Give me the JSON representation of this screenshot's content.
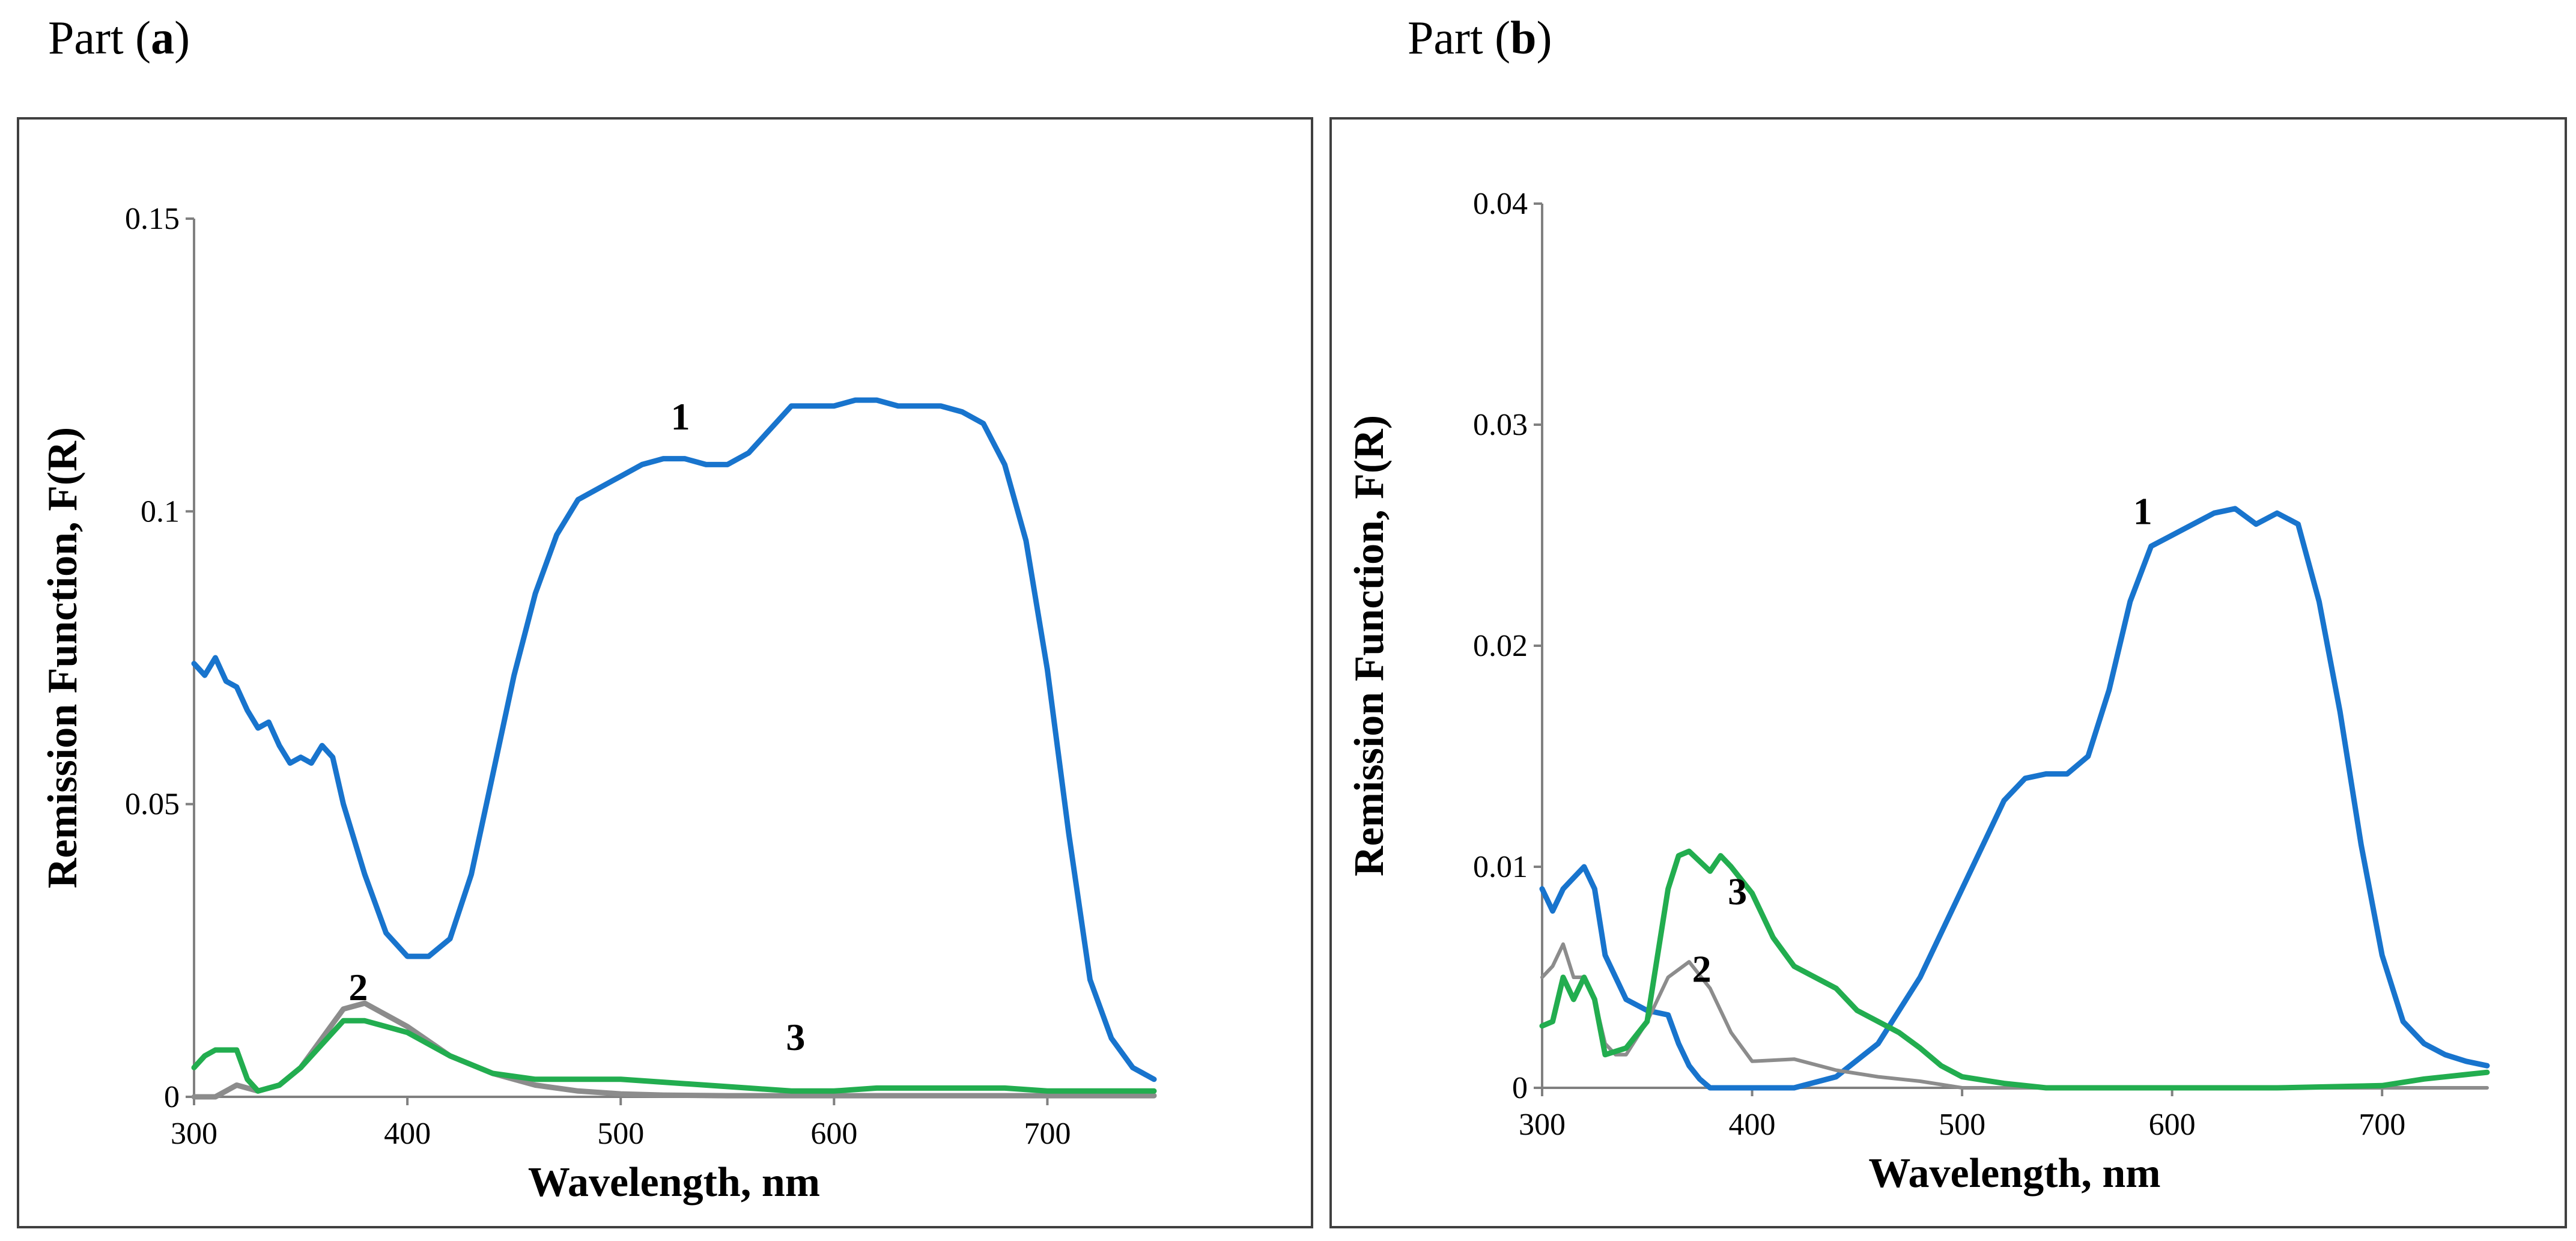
{
  "chart_data": [
    {
      "panel_label_prefix": "Part (",
      "panel_label_letter": "a",
      "panel_label_suffix": ")",
      "type": "line",
      "xlabel": "Wavelength,  nm",
      "ylabel": "Remission Function, F(R)",
      "xlim": [
        300,
        750
      ],
      "ylim": [
        0,
        0.15
      ],
      "xticks": [
        300,
        400,
        500,
        600,
        700
      ],
      "yticks": [
        0,
        0.05,
        0.1,
        0.15
      ],
      "ytick_labels": [
        "0",
        "0.05",
        "0.1",
        "0.15"
      ],
      "series": [
        {
          "name": "1",
          "color": "#1874CD",
          "x": [
            300,
            305,
            310,
            315,
            320,
            325,
            330,
            335,
            340,
            345,
            350,
            355,
            360,
            365,
            370,
            380,
            390,
            400,
            410,
            420,
            430,
            440,
            450,
            460,
            470,
            480,
            490,
            500,
            510,
            520,
            530,
            540,
            550,
            560,
            570,
            580,
            590,
            600,
            610,
            620,
            630,
            640,
            650,
            660,
            670,
            680,
            690,
            700,
            710,
            720,
            730,
            740,
            750
          ],
          "y": [
            0.074,
            0.072,
            0.075,
            0.071,
            0.07,
            0.066,
            0.063,
            0.064,
            0.06,
            0.057,
            0.058,
            0.057,
            0.06,
            0.058,
            0.05,
            0.038,
            0.028,
            0.024,
            0.024,
            0.027,
            0.038,
            0.055,
            0.072,
            0.086,
            0.096,
            0.102,
            0.104,
            0.106,
            0.108,
            0.109,
            0.109,
            0.108,
            0.108,
            0.11,
            0.114,
            0.118,
            0.118,
            0.118,
            0.119,
            0.119,
            0.118,
            0.118,
            0.118,
            0.117,
            0.115,
            0.108,
            0.095,
            0.073,
            0.045,
            0.02,
            0.01,
            0.005,
            0.003
          ]
        },
        {
          "name": "2",
          "color": "#8C8C8C",
          "x": [
            300,
            310,
            320,
            330,
            340,
            350,
            360,
            370,
            380,
            390,
            400,
            420,
            440,
            460,
            480,
            500,
            520,
            550,
            600,
            650,
            700,
            750
          ],
          "y": [
            0.0,
            0.0,
            0.002,
            0.001,
            0.002,
            0.005,
            0.01,
            0.015,
            0.016,
            0.014,
            0.012,
            0.007,
            0.004,
            0.002,
            0.001,
            0.0005,
            0.0003,
            0.0002,
            0.0002,
            0.0002,
            0.0002,
            0.0002
          ]
        },
        {
          "name": "3",
          "color": "#22AD4F",
          "x": [
            300,
            305,
            310,
            315,
            320,
            325,
            330,
            340,
            350,
            360,
            370,
            380,
            390,
            400,
            420,
            440,
            460,
            480,
            500,
            520,
            540,
            560,
            580,
            600,
            620,
            650,
            680,
            700,
            720,
            750
          ],
          "y": [
            0.005,
            0.007,
            0.008,
            0.008,
            0.008,
            0.003,
            0.001,
            0.002,
            0.005,
            0.009,
            0.013,
            0.013,
            0.012,
            0.011,
            0.007,
            0.004,
            0.003,
            0.003,
            0.003,
            0.0025,
            0.002,
            0.0015,
            0.001,
            0.001,
            0.0015,
            0.0015,
            0.0015,
            0.001,
            0.001,
            0.001
          ]
        }
      ],
      "annotations": [
        {
          "text": "1",
          "x": 528,
          "y": 0.114
        },
        {
          "text": "2",
          "x": 377,
          "y": 0.0165
        },
        {
          "text": "3",
          "x": 582,
          "y": 0.008
        }
      ]
    },
    {
      "panel_label_prefix": "Part (",
      "panel_label_letter": "b",
      "panel_label_suffix": ")",
      "type": "line",
      "xlabel": "Wavelength,  nm",
      "ylabel": "Remission Function, F(R)",
      "xlim": [
        300,
        750
      ],
      "ylim": [
        0,
        0.04
      ],
      "xticks": [
        300,
        400,
        500,
        600,
        700
      ],
      "yticks": [
        0,
        0.01,
        0.02,
        0.03,
        0.04
      ],
      "ytick_labels": [
        "0",
        "0.01",
        "0.02",
        "0.03",
        "0.04"
      ],
      "series": [
        {
          "name": "1",
          "color": "#1874CD",
          "x": [
            300,
            305,
            310,
            315,
            320,
            325,
            330,
            340,
            350,
            360,
            365,
            370,
            375,
            380,
            390,
            400,
            420,
            440,
            460,
            480,
            500,
            510,
            520,
            530,
            540,
            550,
            560,
            570,
            580,
            590,
            600,
            610,
            620,
            630,
            640,
            650,
            660,
            670,
            680,
            690,
            700,
            710,
            720,
            730,
            740,
            750
          ],
          "y": [
            0.009,
            0.008,
            0.009,
            0.0095,
            0.01,
            0.009,
            0.006,
            0.004,
            0.0035,
            0.0033,
            0.002,
            0.001,
            0.0004,
            0.0,
            0.0,
            0.0,
            0.0,
            0.0005,
            0.002,
            0.005,
            0.009,
            0.011,
            0.013,
            0.014,
            0.0142,
            0.0142,
            0.015,
            0.018,
            0.022,
            0.0245,
            0.025,
            0.0255,
            0.026,
            0.0262,
            0.0255,
            0.026,
            0.0255,
            0.022,
            0.017,
            0.011,
            0.006,
            0.003,
            0.002,
            0.0015,
            0.0012,
            0.001
          ]
        },
        {
          "name": "2",
          "color": "#8C8C8C",
          "x": [
            300,
            305,
            310,
            315,
            320,
            325,
            330,
            335,
            340,
            350,
            360,
            370,
            380,
            390,
            400,
            420,
            440,
            460,
            480,
            500,
            550,
            600,
            650,
            700,
            750
          ],
          "y": [
            0.005,
            0.0055,
            0.0065,
            0.005,
            0.005,
            0.004,
            0.002,
            0.0015,
            0.0015,
            0.003,
            0.005,
            0.0057,
            0.0045,
            0.0025,
            0.0012,
            0.0013,
            0.0008,
            0.0005,
            0.0003,
            0.0,
            0.0,
            0.0,
            0.0,
            0.0,
            0.0
          ]
        },
        {
          "name": "3",
          "color": "#22AD4F",
          "x": [
            300,
            305,
            310,
            315,
            320,
            325,
            330,
            340,
            350,
            360,
            365,
            370,
            380,
            385,
            390,
            400,
            410,
            420,
            430,
            440,
            450,
            460,
            470,
            480,
            490,
            500,
            520,
            540,
            560,
            580,
            600,
            650,
            700,
            720,
            740,
            750
          ],
          "y": [
            0.0028,
            0.003,
            0.005,
            0.004,
            0.005,
            0.004,
            0.0015,
            0.0018,
            0.003,
            0.009,
            0.0105,
            0.0107,
            0.0098,
            0.0105,
            0.01,
            0.0088,
            0.0068,
            0.0055,
            0.005,
            0.0045,
            0.0035,
            0.003,
            0.0025,
            0.0018,
            0.001,
            0.0005,
            0.0002,
            0.0,
            0.0,
            0.0,
            0.0,
            0.0,
            0.0001,
            0.0004,
            0.0006,
            0.0007
          ]
        }
      ],
      "annotations": [
        {
          "text": "1",
          "x": 586,
          "y": 0.0255
        },
        {
          "text": "2",
          "x": 376,
          "y": 0.0048
        },
        {
          "text": "3",
          "x": 393,
          "y": 0.0083
        }
      ]
    }
  ]
}
